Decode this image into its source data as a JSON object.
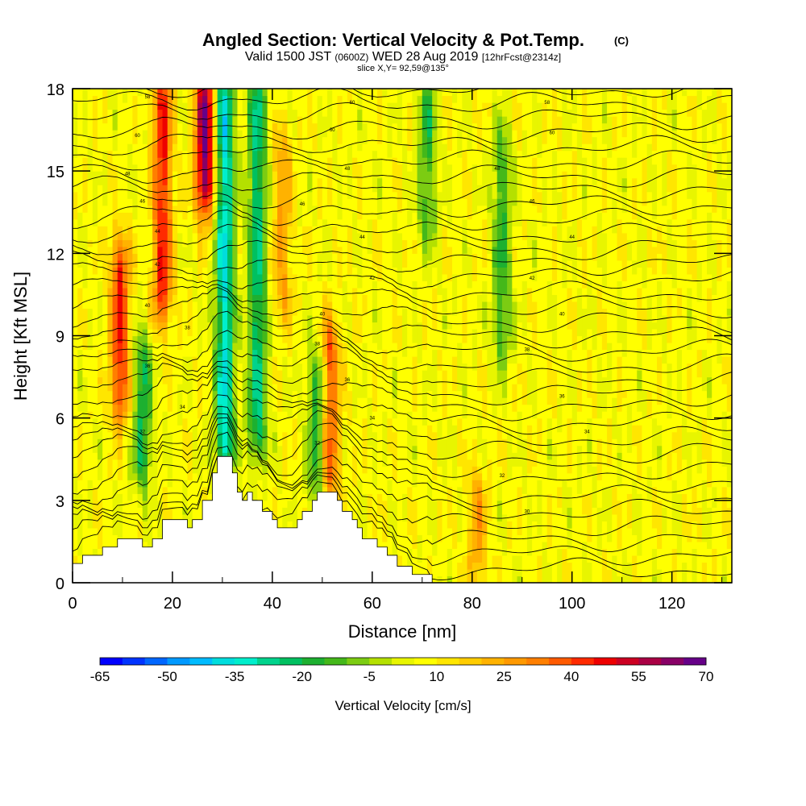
{
  "header": {
    "title": "Angled Section: Vertical Velocity & Pot.Temp.",
    "title_suffix": "(C)",
    "subtitle_main": "Valid 1500 JST",
    "subtitle_utc": "(0600Z)",
    "subtitle_date": "WED 28 Aug 2019",
    "subtitle_fcst": "[12hrFcst@2314z]",
    "slice": "slice X,Y= 92,59@135°"
  },
  "chart_data": {
    "type": "heatmap",
    "title": "Angled Section: Vertical Velocity & Pot.Temp.",
    "xlabel": "Distance [nm]",
    "ylabel": "Height [Kft MSL]",
    "xlim": [
      0,
      132
    ],
    "ylim": [
      0,
      18
    ],
    "x_ticks": [
      0,
      20,
      40,
      60,
      80,
      100,
      120
    ],
    "y_ticks": [
      0,
      3,
      6,
      9,
      12,
      15,
      18
    ],
    "colorbar": {
      "label": "Vertical Velocity [cm/s]",
      "tick_labels": [
        "-65",
        "-50",
        "-35",
        "-20",
        "-5",
        "10",
        "25",
        "40",
        "55",
        "70"
      ],
      "levels": [
        -65,
        -60,
        -55,
        -50,
        -45,
        -40,
        -35,
        -30,
        -25,
        -20,
        -15,
        -10,
        -5,
        0,
        5,
        10,
        15,
        20,
        25,
        30,
        35,
        40,
        45,
        50,
        55,
        60,
        65,
        70
      ],
      "colors": [
        "#0000ff",
        "#0033ff",
        "#0066ff",
        "#0099ff",
        "#00bbff",
        "#00dddd",
        "#00eecc",
        "#00d38c",
        "#00c060",
        "#1db030",
        "#44b81a",
        "#7ccc12",
        "#b4e000",
        "#e8f500",
        "#ffff00",
        "#ffe600",
        "#ffcc00",
        "#ffb200",
        "#ff9900",
        "#ff7f00",
        "#ff5a00",
        "#ff2a00",
        "#ee0000",
        "#cc0022",
        "#aa0044",
        "#880066",
        "#660088"
      ]
    },
    "terrain_kft": [
      [
        0,
        0.7
      ],
      [
        2,
        1.0
      ],
      [
        5,
        1.0
      ],
      [
        6,
        1.3
      ],
      [
        9,
        1.6
      ],
      [
        13,
        1.6
      ],
      [
        14,
        1.3
      ],
      [
        16,
        1.6
      ],
      [
        18,
        2.3
      ],
      [
        22,
        2.3
      ],
      [
        23,
        2.0
      ],
      [
        24,
        2.3
      ],
      [
        26,
        3.0
      ],
      [
        28,
        4.0
      ],
      [
        29,
        4.6
      ],
      [
        31,
        4.6
      ],
      [
        32,
        4.0
      ],
      [
        33,
        3.3
      ],
      [
        34,
        3.0
      ],
      [
        35,
        3.3
      ],
      [
        36,
        3.0
      ],
      [
        37,
        3.0
      ],
      [
        38,
        2.6
      ],
      [
        40,
        2.3
      ],
      [
        41,
        2.0
      ],
      [
        44,
        2.0
      ],
      [
        45,
        2.3
      ],
      [
        46,
        2.6
      ],
      [
        48,
        3.0
      ],
      [
        49,
        3.3
      ],
      [
        52,
        3.3
      ],
      [
        53,
        3.0
      ],
      [
        54,
        2.6
      ],
      [
        56,
        2.3
      ],
      [
        57,
        2.0
      ],
      [
        58,
        1.6
      ],
      [
        60,
        1.6
      ],
      [
        61,
        1.3
      ],
      [
        63,
        1.0
      ],
      [
        65,
        0.6
      ],
      [
        68,
        0.3
      ],
      [
        71,
        0.3
      ],
      [
        72,
        0
      ],
      [
        132,
        0
      ]
    ],
    "updrafts": [
      {
        "x": 9.5,
        "z_min": 6.5,
        "z_max": 12,
        "w": 45
      },
      {
        "x": 18,
        "z_min": 10,
        "z_max": 18,
        "w": 45
      },
      {
        "x": 26.5,
        "z_min": 14,
        "z_max": 18,
        "w": 65
      },
      {
        "x": 51.5,
        "z_min": 3.5,
        "z_max": 9,
        "w": 40
      },
      {
        "x": 42,
        "z_min": 10,
        "z_max": 16,
        "w": 25
      },
      {
        "x": 81,
        "z_min": 0.5,
        "z_max": 3.5,
        "w": 25
      }
    ],
    "downdrafts": [
      {
        "x": 30.5,
        "z_min": 4.5,
        "z_max": 18,
        "w": -35
      },
      {
        "x": 37,
        "z_min": 5,
        "z_max": 18,
        "w": -25
      },
      {
        "x": 14,
        "z_min": 4,
        "z_max": 8.5,
        "w": -20
      },
      {
        "x": 49,
        "z_min": 3.5,
        "z_max": 8,
        "w": -20
      },
      {
        "x": 71,
        "z_min": 13,
        "z_max": 18,
        "w": -15
      },
      {
        "x": 86,
        "z_min": 8.5,
        "z_max": 16,
        "w": -15
      }
    ],
    "isentrope_labels": [
      {
        "x": 15,
        "z": 17.7,
        "text": "58"
      },
      {
        "x": 13,
        "z": 16.3,
        "text": "60"
      },
      {
        "x": 11,
        "z": 14.9,
        "text": "48"
      },
      {
        "x": 14,
        "z": 13.9,
        "text": "46"
      },
      {
        "x": 17,
        "z": 12.8,
        "text": "44"
      },
      {
        "x": 17,
        "z": 11.6,
        "text": "42"
      },
      {
        "x": 15,
        "z": 10.1,
        "text": "40"
      },
      {
        "x": 23,
        "z": 9.3,
        "text": "38"
      },
      {
        "x": 15,
        "z": 7.9,
        "text": "36"
      },
      {
        "x": 22,
        "z": 6.4,
        "text": "34"
      },
      {
        "x": 14,
        "z": 5.5,
        "text": "32"
      },
      {
        "x": 56,
        "z": 17.5,
        "text": "60"
      },
      {
        "x": 52,
        "z": 16.5,
        "text": "60"
      },
      {
        "x": 55,
        "z": 15.1,
        "text": "48"
      },
      {
        "x": 46,
        "z": 13.8,
        "text": "46"
      },
      {
        "x": 58,
        "z": 12.6,
        "text": "44"
      },
      {
        "x": 60,
        "z": 11.1,
        "text": "42"
      },
      {
        "x": 50,
        "z": 9.8,
        "text": "40"
      },
      {
        "x": 49,
        "z": 8.7,
        "text": "38"
      },
      {
        "x": 55,
        "z": 7.4,
        "text": "36"
      },
      {
        "x": 60,
        "z": 6.0,
        "text": "34"
      },
      {
        "x": 49,
        "z": 5.1,
        "text": "32"
      },
      {
        "x": 95,
        "z": 17.5,
        "text": "58"
      },
      {
        "x": 96,
        "z": 16.4,
        "text": "60"
      },
      {
        "x": 85,
        "z": 15.1,
        "text": "48"
      },
      {
        "x": 92,
        "z": 13.9,
        "text": "46"
      },
      {
        "x": 100,
        "z": 12.6,
        "text": "44"
      },
      {
        "x": 92,
        "z": 11.1,
        "text": "42"
      },
      {
        "x": 98,
        "z": 9.8,
        "text": "40"
      },
      {
        "x": 91,
        "z": 8.5,
        "text": "38"
      },
      {
        "x": 98,
        "z": 6.8,
        "text": "36"
      },
      {
        "x": 103,
        "z": 5.5,
        "text": "34"
      },
      {
        "x": 86,
        "z": 3.9,
        "text": "32"
      },
      {
        "x": 91,
        "z": 2.6,
        "text": "30"
      }
    ]
  }
}
